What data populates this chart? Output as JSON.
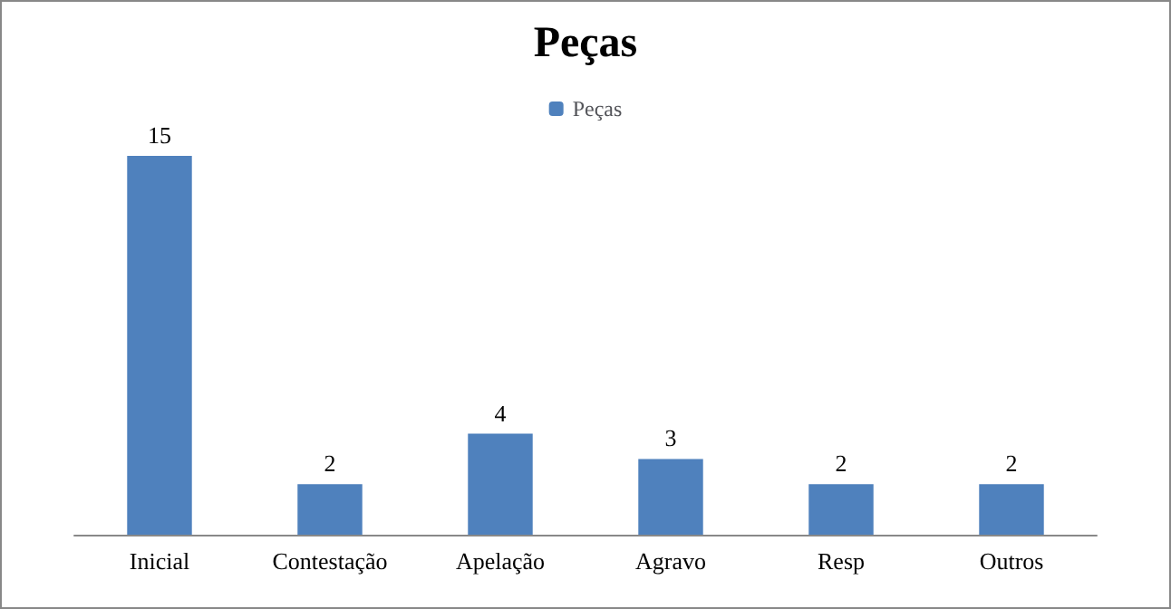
{
  "chart_data": {
    "type": "bar",
    "title": "Peças",
    "categories": [
      "Inicial",
      "Contestação",
      "Apelação",
      "Agravo",
      "Resp",
      "Outros"
    ],
    "series": [
      {
        "name": "Peças",
        "color": "#4f81bd",
        "values": [
          15,
          2,
          4,
          3,
          2,
          2
        ]
      }
    ],
    "data_labels": true,
    "legend": "top",
    "grid": false
  }
}
